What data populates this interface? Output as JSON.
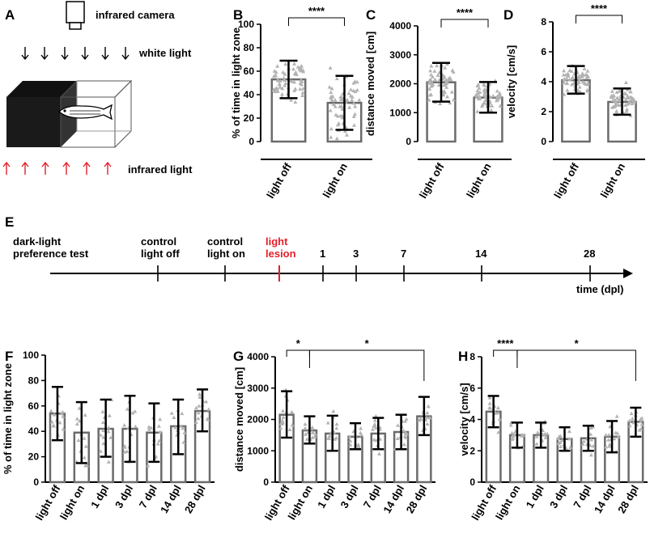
{
  "panel_letters": [
    "A",
    "B",
    "C",
    "D",
    "E",
    "F",
    "G",
    "H"
  ],
  "setup": {
    "camera_label": "infrared camera",
    "white_light_label": "white light",
    "infrared_light_label": "infrared light"
  },
  "timeline": {
    "start_label_line1": "dark-light",
    "start_label_line2": "preference test",
    "events": [
      {
        "line1": "control",
        "line2": "light off",
        "color": "#000000"
      },
      {
        "line1": "control",
        "line2": "light on",
        "color": "#000000"
      },
      {
        "line1": "light",
        "line2": "lesion",
        "color": "#e4202a"
      }
    ],
    "days": [
      "1",
      "3",
      "7",
      "14",
      "28"
    ],
    "axis_label": "time (dpl)"
  },
  "chart_data": [
    {
      "id": "B",
      "type": "bar",
      "ylabel": "% of time in light zone",
      "categories": [
        "light off",
        "light on"
      ],
      "values": [
        53,
        33
      ],
      "err_low": [
        37,
        10
      ],
      "err_high": [
        69,
        56
      ],
      "ylim": [
        0,
        100
      ],
      "yticks": [
        "0",
        "20",
        "40",
        "60",
        "80",
        "100"
      ],
      "significance": [
        {
          "from": 0,
          "to": 1,
          "label": "****"
        }
      ]
    },
    {
      "id": "C",
      "type": "bar",
      "ylabel": "distance moved [cm]",
      "categories": [
        "light off",
        "light on"
      ],
      "values": [
        2050,
        1520
      ],
      "err_low": [
        1380,
        1000
      ],
      "err_high": [
        2720,
        2060
      ],
      "ylim": [
        0,
        4000
      ],
      "yticks": [
        "0",
        "1000",
        "2000",
        "3000",
        "4000"
      ],
      "significance": [
        {
          "from": 0,
          "to": 1,
          "label": "****"
        }
      ]
    },
    {
      "id": "D",
      "type": "bar",
      "ylabel": "velocity [cm/s]",
      "categories": [
        "light off",
        "light on"
      ],
      "values": [
        4.1,
        2.65
      ],
      "err_low": [
        3.2,
        1.8
      ],
      "err_high": [
        5.05,
        3.55
      ],
      "ylim": [
        0,
        8
      ],
      "yticks": [
        "0",
        "2",
        "4",
        "6",
        "8"
      ],
      "significance": [
        {
          "from": 0,
          "to": 1,
          "label": "****"
        }
      ]
    },
    {
      "id": "F",
      "type": "bar",
      "ylabel": "% of time in light zone",
      "categories": [
        "light off",
        "light on",
        "1 dpl",
        "3 dpl",
        "7 dpl",
        "14 dpl",
        "28 dpl"
      ],
      "values": [
        54,
        39,
        42,
        42,
        39,
        44,
        56
      ],
      "err_low": [
        33,
        15,
        20,
        16,
        16,
        22,
        40
      ],
      "err_high": [
        75,
        63,
        65,
        68,
        62,
        65,
        73
      ],
      "ylim": [
        0,
        100
      ],
      "yticks": [
        "0",
        "20",
        "40",
        "60",
        "80",
        "100"
      ],
      "significance": []
    },
    {
      "id": "G",
      "type": "bar",
      "ylabel": "distance moved [cm]",
      "categories": [
        "light off",
        "light on",
        "1 dpl",
        "3 dpl",
        "7 dpl",
        "14 dpl",
        "28 dpl"
      ],
      "values": [
        2150,
        1650,
        1550,
        1450,
        1550,
        1600,
        2100
      ],
      "err_low": [
        1420,
        1230,
        1000,
        1050,
        1050,
        1050,
        1500
      ],
      "err_high": [
        2900,
        2100,
        2120,
        1880,
        2050,
        2150,
        2720
      ],
      "ylim": [
        0,
        4000
      ],
      "yticks": [
        "0",
        "1000",
        "2000",
        "3000",
        "4000"
      ],
      "significance": [
        {
          "from": 0,
          "to": 1,
          "label": "*"
        },
        {
          "from": 1,
          "to": 6,
          "label": "*"
        }
      ]
    },
    {
      "id": "H",
      "type": "bar",
      "ylabel": "velocity [cm/s]",
      "categories": [
        "light off",
        "light on",
        "1 dpl",
        "3 dpl",
        "7 dpl",
        "14 dpl",
        "28 dpl"
      ],
      "values": [
        4.5,
        3.0,
        3.0,
        2.75,
        2.8,
        2.9,
        3.85
      ],
      "err_low": [
        3.5,
        2.2,
        2.2,
        2.0,
        2.0,
        1.9,
        2.9
      ],
      "err_high": [
        5.5,
        3.8,
        3.8,
        3.5,
        3.6,
        3.9,
        4.75
      ],
      "ylim": [
        0,
        8
      ],
      "yticks": [
        "0",
        "2",
        "4",
        "6",
        "8"
      ],
      "significance": [
        {
          "from": 0,
          "to": 1,
          "label": "****"
        },
        {
          "from": 1,
          "to": 6,
          "label": "*"
        }
      ]
    }
  ]
}
